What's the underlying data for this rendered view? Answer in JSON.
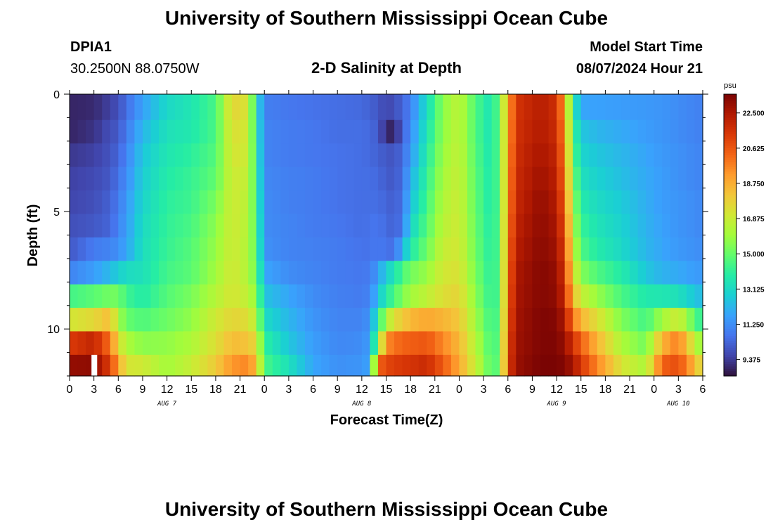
{
  "header": {
    "title": "University of Southern Mississippi Ocean Cube",
    "station_id": "DPIA1",
    "station_coords": "30.2500N  88.0750W",
    "plot_title": "2-D Salinity at Depth",
    "model_start_label": "Model Start Time",
    "model_start_value": "08/07/2024 Hour 21"
  },
  "footer": {
    "title": "University of Southern Mississippi Ocean Cube"
  },
  "chart_data": {
    "type": "heatmap",
    "title": "2-D Salinity at Depth",
    "xlabel": "Forecast Time(Z)",
    "ylabel": "Depth (ft)",
    "ylim": [
      0,
      12
    ],
    "y_ticks": [
      "0",
      "5",
      "10"
    ],
    "x_range_hours": [
      0,
      78
    ],
    "x_tick_labels": [
      "0",
      "3",
      "6",
      "9",
      "12",
      "15",
      "18",
      "21",
      "0",
      "3",
      "6",
      "9",
      "12",
      "15",
      "18",
      "21",
      "0",
      "3",
      "6",
      "9",
      "12",
      "15",
      "18",
      "21",
      "0",
      "3",
      "6"
    ],
    "day_labels": [
      {
        "text": "AUG 7",
        "hour": 12
      },
      {
        "text": "AUG 8",
        "hour": 36
      },
      {
        "text": "AUG 9",
        "hour": 60
      },
      {
        "text": "AUG 10",
        "hour": 75
      }
    ],
    "colorbar": {
      "unit": "psu",
      "min": 8.5,
      "max": 23.5,
      "ticks": [
        "22.500",
        "20.625",
        "18.750",
        "16.875",
        "15.000",
        "13.125",
        "11.250",
        "9.375"
      ]
    },
    "depth_bands_ft": [
      0.6,
      1.6,
      2.6,
      3.6,
      4.6,
      5.6,
      6.6,
      7.6,
      8.6,
      9.6,
      10.6,
      11.6
    ],
    "salinity_columns": [
      {
        "t": 0,
        "s": [
          8.9,
          8.9,
          9.3,
          9.5,
          9.6,
          9.8,
          10.0,
          11.0,
          14.4,
          17.1,
          21.3,
          23.0
        ]
      },
      {
        "t": 3,
        "s": [
          9.0,
          9.2,
          9.5,
          9.7,
          9.8,
          10.0,
          10.8,
          11.6,
          14.8,
          17.6,
          22.0,
          23.1
        ]
      },
      {
        "t": 5,
        "s": [
          9.5,
          9.8,
          9.9,
          10.0,
          10.2,
          10.3,
          11.0,
          12.3,
          15.2,
          18.4,
          20.0,
          21.2
        ]
      },
      {
        "t": 6,
        "s": [
          9.8,
          10.0,
          10.3,
          10.6,
          10.8,
          11.0,
          11.3,
          12.8,
          15.2,
          16.1,
          17.5,
          19.0
        ]
      },
      {
        "t": 7,
        "s": [
          10.5,
          10.8,
          11.0,
          11.2,
          11.5,
          11.6,
          11.8,
          13.2,
          14.3,
          15.0,
          16.2,
          17.2
        ]
      },
      {
        "t": 9,
        "s": [
          11.7,
          12.2,
          12.6,
          12.8,
          13.0,
          13.2,
          13.3,
          13.4,
          13.8,
          14.6,
          15.6,
          17.0
        ]
      },
      {
        "t": 12,
        "s": [
          13.1,
          13.4,
          13.6,
          13.8,
          14.0,
          14.1,
          14.2,
          14.4,
          14.7,
          15.1,
          15.7,
          16.0
        ]
      },
      {
        "t": 15,
        "s": [
          13.6,
          13.7,
          14.0,
          14.2,
          14.3,
          14.5,
          14.7,
          14.8,
          15.3,
          15.7,
          16.2,
          16.8
        ]
      },
      {
        "t": 18,
        "s": [
          14.5,
          14.5,
          14.7,
          14.9,
          15.3,
          15.6,
          15.8,
          16.0,
          16.4,
          17.0,
          17.4,
          18.0
        ]
      },
      {
        "t": 20,
        "s": [
          17.7,
          17.4,
          17.2,
          17.0,
          17.0,
          17.0,
          17.0,
          17.1,
          17.2,
          17.7,
          18.4,
          19.3
        ]
      },
      {
        "t": 22,
        "s": [
          17.2,
          17.0,
          16.9,
          16.7,
          16.5,
          16.4,
          16.3,
          16.3,
          16.6,
          17.4,
          18.2,
          19.6
        ]
      },
      {
        "t": 23,
        "s": [
          13.5,
          13.8,
          14.0,
          14.2,
          14.4,
          14.6,
          14.8,
          15.0,
          15.6,
          16.4,
          17.5,
          18.4
        ]
      },
      {
        "t": 24,
        "s": [
          10.9,
          11.0,
          11.0,
          11.1,
          11.2,
          11.2,
          11.3,
          11.8,
          12.5,
          13.2,
          14.0,
          14.5
        ]
      },
      {
        "t": 27,
        "s": [
          10.7,
          10.8,
          10.8,
          10.9,
          10.9,
          11.0,
          11.0,
          11.2,
          11.8,
          12.2,
          12.6,
          13.4
        ]
      },
      {
        "t": 30,
        "s": [
          10.6,
          10.7,
          10.7,
          10.8,
          10.8,
          10.8,
          10.9,
          11.0,
          11.2,
          11.4,
          11.6,
          11.8
        ]
      },
      {
        "t": 33,
        "s": [
          10.5,
          10.5,
          10.6,
          10.6,
          10.6,
          10.7,
          10.8,
          10.8,
          10.9,
          11.0,
          11.1,
          11.3
        ]
      },
      {
        "t": 36,
        "s": [
          10.4,
          10.5,
          10.5,
          10.5,
          10.5,
          10.5,
          10.6,
          10.7,
          10.8,
          11.0,
          11.2,
          11.4
        ]
      },
      {
        "t": 37,
        "s": [
          10.2,
          10.4,
          10.4,
          10.5,
          10.5,
          10.6,
          10.6,
          10.8,
          11.0,
          11.4,
          11.6,
          11.8
        ]
      },
      {
        "t": 38,
        "s": [
          10.0,
          10.1,
          10.2,
          10.4,
          10.5,
          10.7,
          10.8,
          11.6,
          12.4,
          13.8,
          15.6,
          20.2
        ]
      },
      {
        "t": 39,
        "s": [
          9.6,
          9.0,
          10.0,
          10.1,
          10.3,
          10.4,
          10.6,
          12.8,
          13.8,
          16.2,
          19.5,
          21.0
        ]
      },
      {
        "t": 40,
        "s": [
          9.8,
          8.8,
          9.9,
          10.0,
          10.1,
          10.2,
          10.5,
          13.5,
          14.5,
          17.4,
          20.0,
          21.2
        ]
      },
      {
        "t": 41,
        "s": [
          10.3,
          10.2,
          10.4,
          10.5,
          10.6,
          10.7,
          12.0,
          14.5,
          15.4,
          18.0,
          20.3,
          21.4
        ]
      },
      {
        "t": 42,
        "s": [
          10.9,
          11.2,
          11.5,
          12.0,
          12.4,
          13.0,
          13.7,
          15.2,
          16.0,
          18.5,
          20.4,
          21.5
        ]
      },
      {
        "t": 44,
        "s": [
          13.2,
          13.5,
          13.8,
          14.1,
          14.4,
          14.7,
          15.1,
          15.8,
          16.6,
          18.9,
          20.6,
          21.8
        ]
      },
      {
        "t": 46,
        "s": [
          15.6,
          15.7,
          15.9,
          16.1,
          16.3,
          16.5,
          16.8,
          17.1,
          17.4,
          18.6,
          19.6,
          20.5
        ]
      },
      {
        "t": 48,
        "s": [
          16.6,
          16.6,
          16.7,
          16.8,
          16.9,
          17.0,
          17.1,
          17.3,
          17.7,
          18.1,
          18.5,
          18.9
        ]
      },
      {
        "t": 50,
        "s": [
          14.6,
          14.6,
          14.7,
          14.8,
          14.9,
          15.0,
          15.1,
          15.3,
          15.6,
          16.0,
          16.4,
          16.8
        ]
      },
      {
        "t": 52,
        "s": [
          13.4,
          13.4,
          13.5,
          13.6,
          13.6,
          13.7,
          13.8,
          13.9,
          14.0,
          14.2,
          14.4,
          14.6
        ]
      },
      {
        "t": 53,
        "s": [
          15.3,
          15.2,
          15.1,
          15.0,
          14.9,
          14.9,
          14.8,
          14.8,
          14.7,
          14.8,
          14.9,
          15.0
        ]
      },
      {
        "t": 54,
        "s": [
          18.7,
          18.8,
          19.0,
          19.2,
          19.4,
          19.6,
          19.8,
          20.0,
          20.2,
          20.5,
          20.8,
          21.0
        ]
      },
      {
        "t": 55,
        "s": [
          21.5,
          21.6,
          21.7,
          21.8,
          21.9,
          22.1,
          22.3,
          22.5,
          22.6,
          22.7,
          22.8,
          22.9
        ]
      },
      {
        "t": 58,
        "s": [
          22.3,
          22.4,
          22.6,
          22.8,
          23.0,
          23.1,
          23.2,
          23.3,
          23.3,
          23.4,
          23.4,
          23.5
        ]
      },
      {
        "t": 60,
        "s": [
          21.7,
          21.8,
          22.0,
          22.2,
          22.4,
          22.6,
          22.8,
          23.0,
          23.1,
          23.3,
          23.4,
          23.5
        ]
      },
      {
        "t": 61,
        "s": [
          18.8,
          19.2,
          19.5,
          19.8,
          20.2,
          20.6,
          21.0,
          21.4,
          21.8,
          22.4,
          22.9,
          23.3
        ]
      },
      {
        "t": 62,
        "s": [
          14.0,
          14.6,
          15.0,
          15.5,
          16.0,
          16.5,
          17.0,
          17.6,
          18.4,
          20.0,
          21.6,
          22.6
        ]
      },
      {
        "t": 63,
        "s": [
          11.8,
          12.6,
          13.0,
          13.4,
          13.8,
          14.2,
          14.6,
          15.5,
          16.8,
          18.6,
          20.4,
          21.4
        ]
      },
      {
        "t": 65,
        "s": [
          11.7,
          12.2,
          12.6,
          12.9,
          13.2,
          13.5,
          13.8,
          14.6,
          15.8,
          17.4,
          18.6,
          19.6
        ]
      },
      {
        "t": 68,
        "s": [
          11.6,
          11.9,
          12.2,
          12.4,
          12.7,
          12.9,
          13.1,
          13.8,
          14.5,
          15.4,
          16.2,
          17.2
        ]
      },
      {
        "t": 71,
        "s": [
          11.5,
          11.6,
          11.8,
          11.9,
          12.0,
          12.1,
          12.2,
          12.6,
          13.7,
          14.4,
          15.2,
          16.2
        ]
      },
      {
        "t": 73,
        "s": [
          11.4,
          11.4,
          11.5,
          11.6,
          11.6,
          11.7,
          11.8,
          12.1,
          13.6,
          16.0,
          18.6,
          20.4
        ]
      },
      {
        "t": 75,
        "s": [
          11.2,
          11.2,
          11.3,
          11.3,
          11.4,
          11.4,
          11.5,
          11.9,
          13.4,
          17.0,
          19.8,
          20.8
        ]
      },
      {
        "t": 77,
        "s": [
          11.0,
          11.0,
          11.1,
          11.1,
          11.2,
          11.2,
          11.3,
          11.6,
          12.6,
          14.8,
          16.8,
          18.6
        ]
      },
      {
        "t": 78,
        "s": [
          10.9,
          10.9,
          11.0,
          11.0,
          11.1,
          11.1,
          11.2,
          11.5,
          12.2,
          13.8,
          15.4,
          17.0
        ]
      }
    ],
    "missing_cell": {
      "t_from": 2.7,
      "t_to": 3.4,
      "depth_band": 11
    },
    "colors": {
      "scale": [
        "#30123b",
        "#4145ab",
        "#4675ed",
        "#39a2fc",
        "#1bcfd4",
        "#24eca6",
        "#61fc6c",
        "#a4fc3b",
        "#d1e834",
        "#f3c63a",
        "#fe9b2d",
        "#f36315",
        "#d93807",
        "#b11901",
        "#7a0403"
      ],
      "axis": "#000000"
    }
  }
}
